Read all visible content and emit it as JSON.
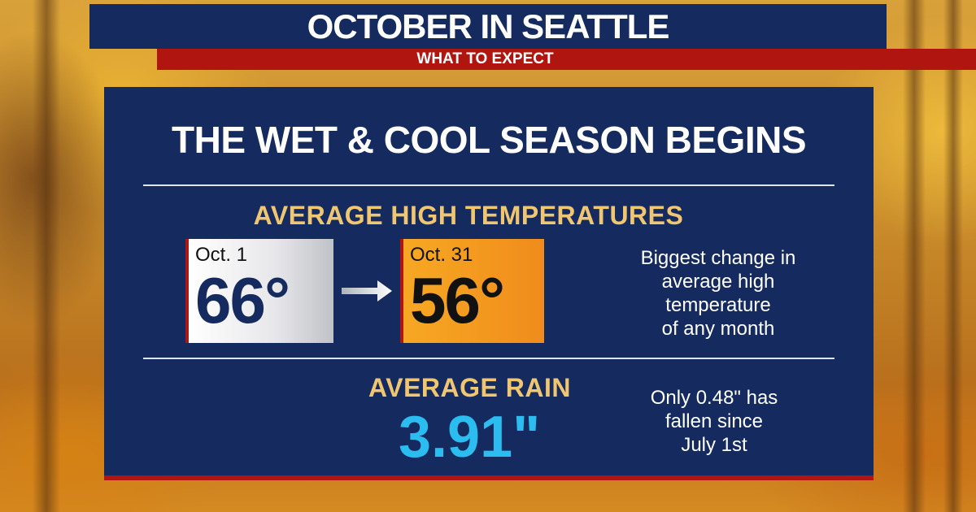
{
  "header": {
    "title": "OCTOBER IN SEATTLE",
    "subtitle": "WHAT TO EXPECT"
  },
  "panel": {
    "headline": "THE WET & COOL SEASON BEGINS",
    "temperature": {
      "label": "AVERAGE HIGH TEMPERATURES",
      "start": {
        "date": "Oct. 1",
        "value": "66°"
      },
      "end": {
        "date": "Oct. 31",
        "value": "56°"
      },
      "note_lines": [
        "Biggest change in",
        "average high",
        "temperature",
        "of any month"
      ]
    },
    "rain": {
      "label": "AVERAGE RAIN",
      "value": "3.91\"",
      "note_lines": [
        "Only 0.48\" has",
        "fallen since",
        "July 1st"
      ]
    }
  },
  "colors": {
    "navy": "#152a5e",
    "red": "#b0150f",
    "gold": "#f0c770",
    "orange": "#f7a823",
    "rain_blue": "#2bbcf0"
  },
  "icons": {
    "arrow": "right-arrow-icon"
  }
}
